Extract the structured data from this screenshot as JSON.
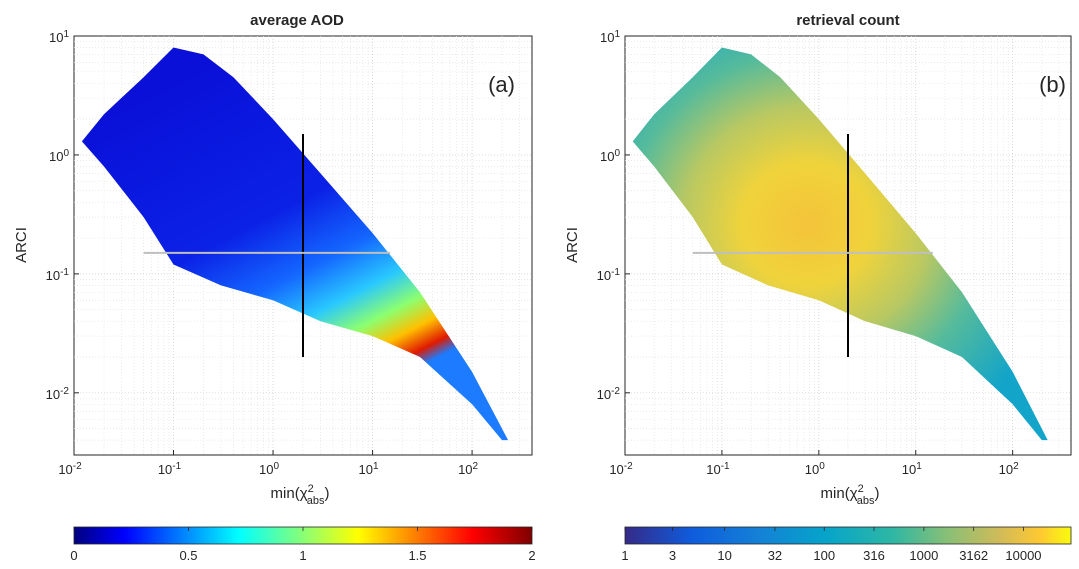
{
  "chart_data": [
    {
      "type": "heatmap",
      "title": "average AOD",
      "panel_label": "(a)",
      "xlabel": "min(χ",
      "xlabel_sup": "2",
      "xlabel_sub": "abs",
      "xlabel_end": ")",
      "ylabel": "ARCI",
      "xscale": "log",
      "yscale": "log",
      "xlim": [
        0.01,
        400
      ],
      "ylim": [
        0.003,
        10
      ],
      "grid": true,
      "x_ticks": [
        {
          "base": "10",
          "exp": "-2",
          "value": 0.01
        },
        {
          "base": "10",
          "exp": "-1",
          "value": 0.1
        },
        {
          "base": "10",
          "exp": "0",
          "value": 1
        },
        {
          "base": "10",
          "exp": "1",
          "value": 10
        },
        {
          "base": "10",
          "exp": "2",
          "value": 100
        }
      ],
      "y_ticks": [
        {
          "base": "10",
          "exp": "-2",
          "value": 0.01
        },
        {
          "base": "10",
          "exp": "-1",
          "value": 0.1
        },
        {
          "base": "10",
          "exp": "0",
          "value": 1
        },
        {
          "base": "10",
          "exp": "1",
          "value": 10
        }
      ],
      "colorbar": {
        "colormap": "jet",
        "scale": "linear",
        "range": [
          0,
          2
        ],
        "ticks": [
          {
            "label": "0",
            "value": 0
          },
          {
            "label": "0.5",
            "value": 0.5
          },
          {
            "label": "1",
            "value": 1
          },
          {
            "label": "1.5",
            "value": 1.5
          },
          {
            "label": "2",
            "value": 2
          }
        ]
      },
      "region_outline": [
        [
          0.012,
          1.3
        ],
        [
          0.02,
          2.2
        ],
        [
          0.05,
          4.5
        ],
        [
          0.1,
          8.0
        ],
        [
          0.2,
          7.0
        ],
        [
          0.4,
          4.5
        ],
        [
          1,
          2.0
        ],
        [
          3,
          0.7
        ],
        [
          10,
          0.22
        ],
        [
          30,
          0.07
        ],
        [
          100,
          0.015
        ],
        [
          230,
          0.004
        ],
        [
          200,
          0.004
        ],
        [
          100,
          0.008
        ],
        [
          30,
          0.02
        ],
        [
          10,
          0.03
        ],
        [
          3,
          0.04
        ],
        [
          1,
          0.06
        ],
        [
          0.3,
          0.08
        ],
        [
          0.1,
          0.12
        ],
        [
          0.05,
          0.3
        ],
        [
          0.02,
          0.8
        ]
      ],
      "reference_lines": [
        {
          "orientation": "vertical",
          "x": 2,
          "y_from": 0.02,
          "y_to": 1.5,
          "color": "#000000"
        },
        {
          "orientation": "horizontal",
          "y": 0.15,
          "x_from": 0.05,
          "x_to": 15,
          "color": "#bfbfbf"
        }
      ]
    },
    {
      "type": "heatmap",
      "title": "retrieval count",
      "panel_label": "(b)",
      "xlabel": "min(χ",
      "xlabel_sup": "2",
      "xlabel_sub": "abs",
      "xlabel_end": ")",
      "ylabel": "ARCI",
      "xscale": "log",
      "yscale": "log",
      "xlim": [
        0.01,
        400
      ],
      "ylim": [
        0.003,
        10
      ],
      "grid": true,
      "x_ticks": [
        {
          "base": "10",
          "exp": "-2",
          "value": 0.01
        },
        {
          "base": "10",
          "exp": "-1",
          "value": 0.1
        },
        {
          "base": "10",
          "exp": "0",
          "value": 1
        },
        {
          "base": "10",
          "exp": "1",
          "value": 10
        },
        {
          "base": "10",
          "exp": "2",
          "value": 100
        }
      ],
      "y_ticks": [
        {
          "base": "10",
          "exp": "-2",
          "value": 0.01
        },
        {
          "base": "10",
          "exp": "-1",
          "value": 0.1
        },
        {
          "base": "10",
          "exp": "0",
          "value": 1
        },
        {
          "base": "10",
          "exp": "1",
          "value": 10
        }
      ],
      "colorbar": {
        "colormap": "parula",
        "scale": "log",
        "range": [
          1,
          30000
        ],
        "ticks": [
          {
            "label": "1",
            "value": 1
          },
          {
            "label": "3",
            "value": 3
          },
          {
            "label": "10",
            "value": 10
          },
          {
            "label": "32",
            "value": 32
          },
          {
            "label": "100",
            "value": 100
          },
          {
            "label": "316",
            "value": 316
          },
          {
            "label": "1000",
            "value": 1000
          },
          {
            "label": "3162",
            "value": 3162
          },
          {
            "label": "10000",
            "value": 10000
          }
        ]
      },
      "region_outline": [
        [
          0.012,
          1.3
        ],
        [
          0.02,
          2.2
        ],
        [
          0.05,
          4.5
        ],
        [
          0.1,
          8.0
        ],
        [
          0.2,
          7.0
        ],
        [
          0.4,
          4.5
        ],
        [
          1,
          2.0
        ],
        [
          3,
          0.7
        ],
        [
          10,
          0.22
        ],
        [
          30,
          0.07
        ],
        [
          100,
          0.015
        ],
        [
          230,
          0.004
        ],
        [
          200,
          0.004
        ],
        [
          100,
          0.008
        ],
        [
          30,
          0.02
        ],
        [
          10,
          0.03
        ],
        [
          3,
          0.04
        ],
        [
          1,
          0.06
        ],
        [
          0.3,
          0.08
        ],
        [
          0.1,
          0.12
        ],
        [
          0.05,
          0.3
        ],
        [
          0.02,
          0.8
        ]
      ],
      "reference_lines": [
        {
          "orientation": "vertical",
          "x": 2,
          "y_from": 0.02,
          "y_to": 1.5,
          "color": "#000000"
        },
        {
          "orientation": "horizontal",
          "y": 0.15,
          "x_from": 0.05,
          "x_to": 15,
          "color": "#bfbfbf"
        }
      ]
    }
  ]
}
